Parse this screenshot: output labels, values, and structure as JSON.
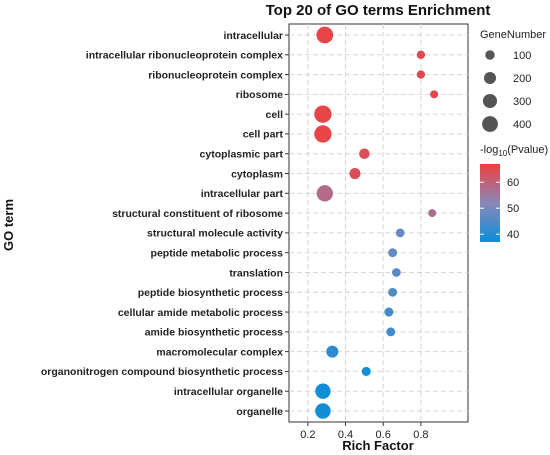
{
  "chart_data": {
    "type": "scatter",
    "title": "Top 20 of GO terms Enrichment",
    "xlabel": "Rich Factor",
    "ylabel": "GO term",
    "xlim": [
      0.1,
      1.05
    ],
    "xticks": [
      "0.2",
      "0.4",
      "0.6",
      "0.8"
    ],
    "grid": true,
    "grid_style": "dashed",
    "legend_position": "right",
    "size_legend": {
      "title": "GeneNumber",
      "labels": [
        "100",
        "200",
        "300",
        "400"
      ],
      "values": [
        100,
        200,
        300,
        400
      ]
    },
    "color_legend": {
      "title_prefix": "-log",
      "title_sub": "10",
      "title_suffix": "(Pvalue)",
      "labels": [
        "60",
        "50",
        "40"
      ],
      "values": [
        60,
        50,
        40
      ],
      "range": [
        37,
        67
      ],
      "colors": {
        "low": "#0b8fd8",
        "mid": "#8a87b8",
        "high": "#ee4040"
      }
    },
    "points": [
      {
        "term": "intracellular",
        "rich_factor": 0.29,
        "gene_number": 460,
        "neg_log10_p": 66
      },
      {
        "term": "intracellular ribonucleoprotein complex",
        "rich_factor": 0.8,
        "gene_number": 70,
        "neg_log10_p": 65
      },
      {
        "term": "ribonucleoprotein complex",
        "rich_factor": 0.8,
        "gene_number": 70,
        "neg_log10_p": 65
      },
      {
        "term": "ribosome",
        "rich_factor": 0.87,
        "gene_number": 60,
        "neg_log10_p": 66
      },
      {
        "term": "cell",
        "rich_factor": 0.28,
        "gene_number": 500,
        "neg_log10_p": 66
      },
      {
        "term": "cell part",
        "rich_factor": 0.28,
        "gene_number": 500,
        "neg_log10_p": 66
      },
      {
        "term": "cytoplasmic part",
        "rich_factor": 0.5,
        "gene_number": 140,
        "neg_log10_p": 64
      },
      {
        "term": "cytoplasm",
        "rich_factor": 0.45,
        "gene_number": 160,
        "neg_log10_p": 64
      },
      {
        "term": "intracellular part",
        "rich_factor": 0.29,
        "gene_number": 430,
        "neg_log10_p": 58
      },
      {
        "term": "structural constituent of ribosome",
        "rich_factor": 0.86,
        "gene_number": 60,
        "neg_log10_p": 57
      },
      {
        "term": "structural molecule activity",
        "rich_factor": 0.69,
        "gene_number": 80,
        "neg_log10_p": 48
      },
      {
        "term": "peptide metabolic process",
        "rich_factor": 0.65,
        "gene_number": 85,
        "neg_log10_p": 47
      },
      {
        "term": "translation",
        "rich_factor": 0.67,
        "gene_number": 80,
        "neg_log10_p": 46
      },
      {
        "term": "peptide biosynthetic process",
        "rich_factor": 0.65,
        "gene_number": 85,
        "neg_log10_p": 45
      },
      {
        "term": "cellular amide metabolic process",
        "rich_factor": 0.63,
        "gene_number": 90,
        "neg_log10_p": 44
      },
      {
        "term": "amide biosynthetic process",
        "rich_factor": 0.64,
        "gene_number": 85,
        "neg_log10_p": 43
      },
      {
        "term": "macromolecular complex",
        "rich_factor": 0.33,
        "gene_number": 200,
        "neg_log10_p": 41
      },
      {
        "term": "organonitrogen compound biosynthetic process",
        "rich_factor": 0.51,
        "gene_number": 90,
        "neg_log10_p": 38
      },
      {
        "term": "intracellular organelle",
        "rich_factor": 0.28,
        "gene_number": 370,
        "neg_log10_p": 38
      },
      {
        "term": "organelle",
        "rich_factor": 0.28,
        "gene_number": 380,
        "neg_log10_p": 38
      }
    ]
  }
}
